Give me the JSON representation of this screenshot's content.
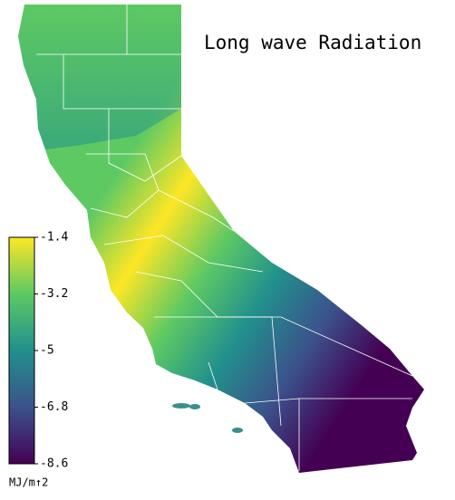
{
  "title": "Long wave Radiation",
  "colorbar": {
    "label": "MJ/m↑2",
    "lim": [
      -8.6,
      -1.4
    ],
    "ticks": [
      -1.4,
      -3.2,
      -5.0,
      -6.8,
      -8.6
    ],
    "colors": [
      "#440154",
      "#3b528b",
      "#21908d",
      "#5dc963",
      "#fde725"
    ]
  }
}
